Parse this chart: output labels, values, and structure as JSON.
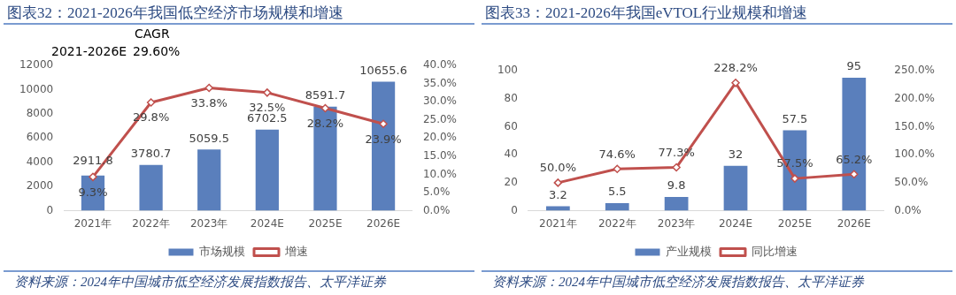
{
  "chart_data": [
    {
      "type": "bar",
      "title": "图表32：2021-2026年我国低空经济市场规模和增速",
      "categories": [
        "2021年",
        "2022年",
        "2023年",
        "2024E",
        "2025E",
        "2026E"
      ],
      "series": [
        {
          "name": "市场规模",
          "color": "#5a7fbc",
          "values": [
            2911.8,
            3780.7,
            5059.5,
            6702.5,
            8591.7,
            10655.6
          ],
          "value_labels": [
            "2911.8",
            "3780.7",
            "5059.5",
            "6702.5",
            "8591.7",
            "10655.6"
          ]
        },
        {
          "name": "增速",
          "type": "line",
          "axis": "y2",
          "color": "#c0504d",
          "marker": "diamond",
          "values": [
            9.3,
            29.8,
            33.8,
            32.5,
            28.2,
            23.9
          ],
          "value_labels": [
            "9.3%",
            "29.8%",
            "33.8%",
            "32.5%",
            "28.2%",
            "23.9%"
          ]
        }
      ],
      "ylim": [
        0,
        12000
      ],
      "yticks": [
        0,
        2000,
        4000,
        6000,
        8000,
        10000,
        12000
      ],
      "y2lim": [
        0,
        40
      ],
      "y2ticks": [
        {
          "value": 0,
          "label": "0.0%"
        },
        {
          "value": 5,
          "label": "5.0%"
        },
        {
          "value": 10,
          "label": "10.0%"
        },
        {
          "value": 15,
          "label": "15.0%"
        },
        {
          "value": 20,
          "label": "20.0%"
        },
        {
          "value": 25,
          "label": "25.0%"
        },
        {
          "value": 30,
          "label": "30.0%"
        },
        {
          "value": 35,
          "label": "35.0%"
        },
        {
          "value": 40,
          "label": "40.0%"
        }
      ],
      "grid": false,
      "legend": "bottom",
      "annotations": [
        "CAGR",
        "2021-2026E",
        "29.60%",
        "资料来源：2024年中国城市低空经济发展指数报告、太平洋证券"
      ]
    },
    {
      "type": "bar",
      "title": "图表33：2021-2026年我国eVTOL行业规模和增速",
      "categories": [
        "2021年",
        "2022年",
        "2023年",
        "2024E",
        "2025E",
        "2026E"
      ],
      "series": [
        {
          "name": "产业规模",
          "color": "#5a7fbc",
          "values": [
            3.2,
            5.5,
            9.8,
            32,
            57.5,
            95
          ],
          "value_labels": [
            "3.2",
            "5.5",
            "9.8",
            "32",
            "57.5",
            "95"
          ]
        },
        {
          "name": "同比增速",
          "type": "line",
          "axis": "y2",
          "color": "#c0504d",
          "marker": "diamond",
          "values": [
            50.0,
            74.6,
            77.3,
            228.2,
            57.5,
            65.2
          ],
          "value_labels": [
            "50.0%",
            "74.6%",
            "77.3%",
            "228.2%",
            "57.5%",
            "65.2%"
          ]
        }
      ],
      "ylim": [
        0,
        100
      ],
      "yticks": [
        0,
        20,
        40,
        60,
        80,
        100
      ],
      "y2lim": [
        0,
        250
      ],
      "y2ticks": [
        {
          "value": 0,
          "label": "0.0%"
        },
        {
          "value": 50,
          "label": "50.0%"
        },
        {
          "value": 100,
          "label": "100.0%"
        },
        {
          "value": 150,
          "label": "150.0%"
        },
        {
          "value": 200,
          "label": "200.0%"
        },
        {
          "value": 250,
          "label": "250.0%"
        }
      ],
      "grid": false,
      "legend": "bottom",
      "annotations": [
        "资料来源：2024年中国城市低空经济发展指数报告、太平洋证券"
      ]
    }
  ]
}
